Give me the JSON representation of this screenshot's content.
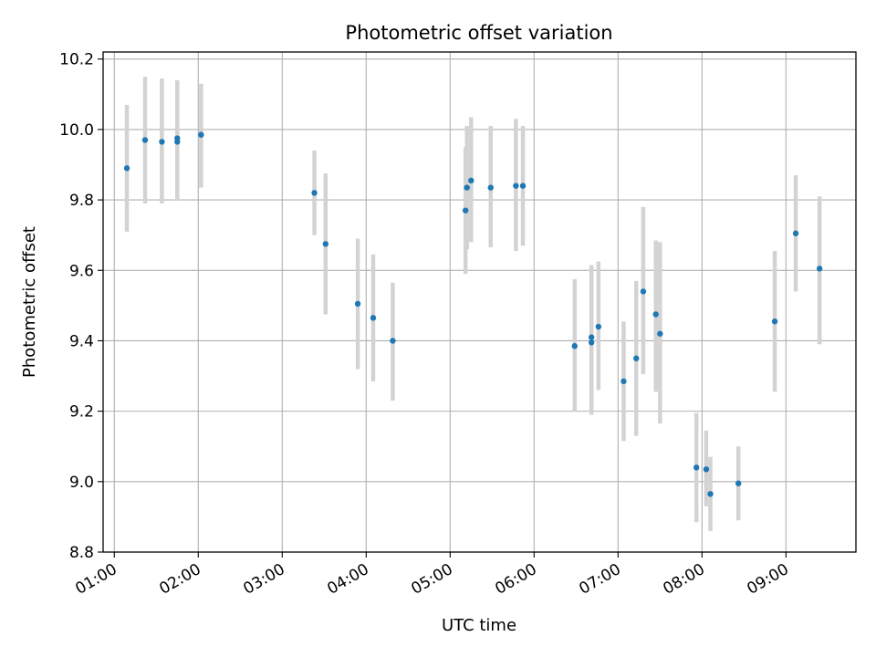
{
  "chart_data": {
    "type": "scatter",
    "title": "Photometric offset variation",
    "xlabel": "UTC time",
    "ylabel": "Photometric offset",
    "xlim": [
      "00:52",
      "09:50"
    ],
    "ylim": [
      8.8,
      10.22
    ],
    "grid": true,
    "x_ticks": [
      "01:00",
      "02:00",
      "03:00",
      "04:00",
      "05:00",
      "06:00",
      "07:00",
      "08:00",
      "09:00"
    ],
    "y_ticks": [
      "8.8",
      "9.0",
      "9.2",
      "9.4",
      "9.6",
      "9.8",
      "10.0",
      "10.2"
    ],
    "colors": {
      "points": "#1f77b4",
      "errorbars": "#d3d3d3",
      "grid": "#b0b0b0"
    },
    "series": [
      {
        "points": [
          {
            "time": "01:09",
            "y": 9.89,
            "ylow": 9.71,
            "yhigh": 10.07
          },
          {
            "time": "01:22",
            "y": 9.97,
            "ylow": 9.79,
            "yhigh": 10.15
          },
          {
            "time": "01:34",
            "y": 9.965,
            "ylow": 9.79,
            "yhigh": 10.145
          },
          {
            "time": "01:45",
            "y": 9.975,
            "ylow": 9.8,
            "yhigh": 10.14
          },
          {
            "time": "01:45",
            "y": 9.965,
            "ylow": 9.8,
            "yhigh": 10.14
          },
          {
            "time": "02:02",
            "y": 9.985,
            "ylow": 9.835,
            "yhigh": 10.13
          },
          {
            "time": "03:23",
            "y": 9.82,
            "ylow": 9.7,
            "yhigh": 9.94
          },
          {
            "time": "03:31",
            "y": 9.675,
            "ylow": 9.475,
            "yhigh": 9.875
          },
          {
            "time": "03:54",
            "y": 9.505,
            "ylow": 9.32,
            "yhigh": 9.69
          },
          {
            "time": "04:05",
            "y": 9.465,
            "ylow": 9.285,
            "yhigh": 9.645
          },
          {
            "time": "04:19",
            "y": 9.4,
            "ylow": 9.23,
            "yhigh": 9.565
          },
          {
            "time": "05:11",
            "y": 9.77,
            "ylow": 9.59,
            "yhigh": 9.95
          },
          {
            "time": "05:12",
            "y": 9.835,
            "ylow": 9.66,
            "yhigh": 10.01
          },
          {
            "time": "05:15",
            "y": 9.855,
            "ylow": 9.68,
            "yhigh": 10.035
          },
          {
            "time": "05:29",
            "y": 9.835,
            "ylow": 9.665,
            "yhigh": 10.01
          },
          {
            "time": "05:47",
            "y": 9.84,
            "ylow": 9.655,
            "yhigh": 10.03
          },
          {
            "time": "05:52",
            "y": 9.84,
            "ylow": 9.67,
            "yhigh": 10.01
          },
          {
            "time": "06:29",
            "y": 9.385,
            "ylow": 9.2,
            "yhigh": 9.575
          },
          {
            "time": "06:41",
            "y": 9.41,
            "ylow": 9.19,
            "yhigh": 9.615
          },
          {
            "time": "06:41",
            "y": 9.395,
            "ylow": 9.19,
            "yhigh": 9.615
          },
          {
            "time": "06:46",
            "y": 9.44,
            "ylow": 9.26,
            "yhigh": 9.625
          },
          {
            "time": "07:04",
            "y": 9.285,
            "ylow": 9.115,
            "yhigh": 9.455
          },
          {
            "time": "07:13",
            "y": 9.35,
            "ylow": 9.13,
            "yhigh": 9.57
          },
          {
            "time": "07:18",
            "y": 9.54,
            "ylow": 9.305,
            "yhigh": 9.78
          },
          {
            "time": "07:27",
            "y": 9.475,
            "ylow": 9.255,
            "yhigh": 9.685
          },
          {
            "time": "07:30",
            "y": 9.42,
            "ylow": 9.165,
            "yhigh": 9.68
          },
          {
            "time": "07:56",
            "y": 9.04,
            "ylow": 8.885,
            "yhigh": 9.195
          },
          {
            "time": "08:03",
            "y": 9.035,
            "ylow": 8.93,
            "yhigh": 9.145
          },
          {
            "time": "08:06",
            "y": 8.965,
            "ylow": 8.86,
            "yhigh": 9.07
          },
          {
            "time": "08:26",
            "y": 8.995,
            "ylow": 8.89,
            "yhigh": 9.1
          },
          {
            "time": "08:52",
            "y": 9.455,
            "ylow": 9.255,
            "yhigh": 9.655
          },
          {
            "time": "09:07",
            "y": 9.705,
            "ylow": 9.54,
            "yhigh": 9.87
          },
          {
            "time": "09:24",
            "y": 9.605,
            "ylow": 9.39,
            "yhigh": 9.81
          }
        ]
      }
    ]
  }
}
